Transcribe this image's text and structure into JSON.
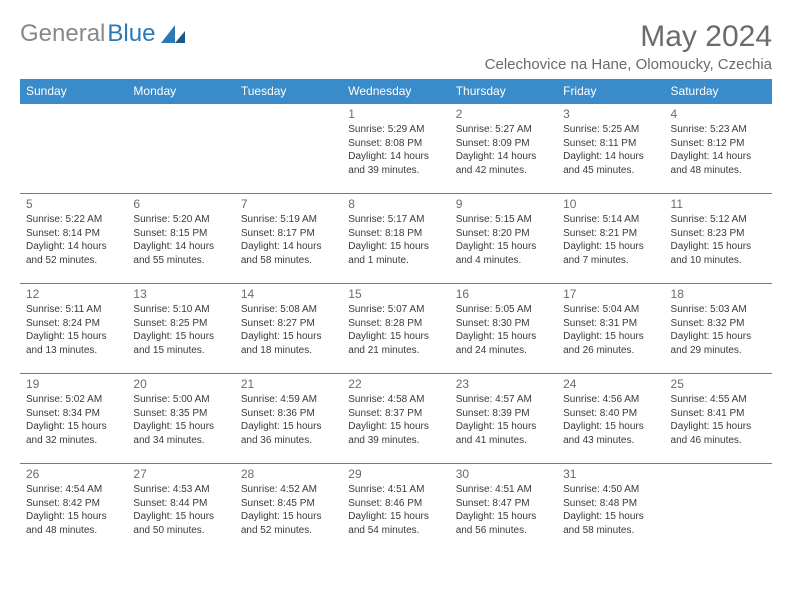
{
  "brand": {
    "word1": "General",
    "word2": "Blue"
  },
  "title": "May 2024",
  "location": "Celechovice na Hane, Olomoucky, Czechia",
  "colors": {
    "header_bg": "#3a8bc9",
    "header_text": "#ffffff",
    "border": "#3a8bc9",
    "title_text": "#6b6b6b",
    "body_text": "#3a3a3a",
    "logo_gray": "#888888",
    "logo_blue": "#2a7ab8"
  },
  "dayHeaders": [
    "Sunday",
    "Monday",
    "Tuesday",
    "Wednesday",
    "Thursday",
    "Friday",
    "Saturday"
  ],
  "weeks": [
    [
      null,
      null,
      null,
      {
        "n": "1",
        "sr": "5:29 AM",
        "ss": "8:08 PM",
        "dl": "14 hours and 39 minutes."
      },
      {
        "n": "2",
        "sr": "5:27 AM",
        "ss": "8:09 PM",
        "dl": "14 hours and 42 minutes."
      },
      {
        "n": "3",
        "sr": "5:25 AM",
        "ss": "8:11 PM",
        "dl": "14 hours and 45 minutes."
      },
      {
        "n": "4",
        "sr": "5:23 AM",
        "ss": "8:12 PM",
        "dl": "14 hours and 48 minutes."
      }
    ],
    [
      {
        "n": "5",
        "sr": "5:22 AM",
        "ss": "8:14 PM",
        "dl": "14 hours and 52 minutes."
      },
      {
        "n": "6",
        "sr": "5:20 AM",
        "ss": "8:15 PM",
        "dl": "14 hours and 55 minutes."
      },
      {
        "n": "7",
        "sr": "5:19 AM",
        "ss": "8:17 PM",
        "dl": "14 hours and 58 minutes."
      },
      {
        "n": "8",
        "sr": "5:17 AM",
        "ss": "8:18 PM",
        "dl": "15 hours and 1 minute."
      },
      {
        "n": "9",
        "sr": "5:15 AM",
        "ss": "8:20 PM",
        "dl": "15 hours and 4 minutes."
      },
      {
        "n": "10",
        "sr": "5:14 AM",
        "ss": "8:21 PM",
        "dl": "15 hours and 7 minutes."
      },
      {
        "n": "11",
        "sr": "5:12 AM",
        "ss": "8:23 PM",
        "dl": "15 hours and 10 minutes."
      }
    ],
    [
      {
        "n": "12",
        "sr": "5:11 AM",
        "ss": "8:24 PM",
        "dl": "15 hours and 13 minutes."
      },
      {
        "n": "13",
        "sr": "5:10 AM",
        "ss": "8:25 PM",
        "dl": "15 hours and 15 minutes."
      },
      {
        "n": "14",
        "sr": "5:08 AM",
        "ss": "8:27 PM",
        "dl": "15 hours and 18 minutes."
      },
      {
        "n": "15",
        "sr": "5:07 AM",
        "ss": "8:28 PM",
        "dl": "15 hours and 21 minutes."
      },
      {
        "n": "16",
        "sr": "5:05 AM",
        "ss": "8:30 PM",
        "dl": "15 hours and 24 minutes."
      },
      {
        "n": "17",
        "sr": "5:04 AM",
        "ss": "8:31 PM",
        "dl": "15 hours and 26 minutes."
      },
      {
        "n": "18",
        "sr": "5:03 AM",
        "ss": "8:32 PM",
        "dl": "15 hours and 29 minutes."
      }
    ],
    [
      {
        "n": "19",
        "sr": "5:02 AM",
        "ss": "8:34 PM",
        "dl": "15 hours and 32 minutes."
      },
      {
        "n": "20",
        "sr": "5:00 AM",
        "ss": "8:35 PM",
        "dl": "15 hours and 34 minutes."
      },
      {
        "n": "21",
        "sr": "4:59 AM",
        "ss": "8:36 PM",
        "dl": "15 hours and 36 minutes."
      },
      {
        "n": "22",
        "sr": "4:58 AM",
        "ss": "8:37 PM",
        "dl": "15 hours and 39 minutes."
      },
      {
        "n": "23",
        "sr": "4:57 AM",
        "ss": "8:39 PM",
        "dl": "15 hours and 41 minutes."
      },
      {
        "n": "24",
        "sr": "4:56 AM",
        "ss": "8:40 PM",
        "dl": "15 hours and 43 minutes."
      },
      {
        "n": "25",
        "sr": "4:55 AM",
        "ss": "8:41 PM",
        "dl": "15 hours and 46 minutes."
      }
    ],
    [
      {
        "n": "26",
        "sr": "4:54 AM",
        "ss": "8:42 PM",
        "dl": "15 hours and 48 minutes."
      },
      {
        "n": "27",
        "sr": "4:53 AM",
        "ss": "8:44 PM",
        "dl": "15 hours and 50 minutes."
      },
      {
        "n": "28",
        "sr": "4:52 AM",
        "ss": "8:45 PM",
        "dl": "15 hours and 52 minutes."
      },
      {
        "n": "29",
        "sr": "4:51 AM",
        "ss": "8:46 PM",
        "dl": "15 hours and 54 minutes."
      },
      {
        "n": "30",
        "sr": "4:51 AM",
        "ss": "8:47 PM",
        "dl": "15 hours and 56 minutes."
      },
      {
        "n": "31",
        "sr": "4:50 AM",
        "ss": "8:48 PM",
        "dl": "15 hours and 58 minutes."
      },
      null
    ]
  ],
  "labels": {
    "sunrise": "Sunrise:",
    "sunset": "Sunset:",
    "daylight": "Daylight:"
  }
}
